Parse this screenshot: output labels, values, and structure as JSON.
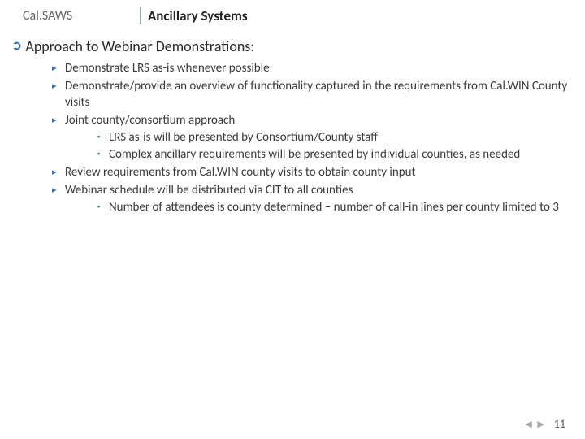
{
  "header": {
    "logo": "Cal.SAWS",
    "title": "Ancillary Systems"
  },
  "section": {
    "heading": "Approach to Webinar Demonstrations:"
  },
  "bullets": [
    {
      "text": "Demonstrate LRS as-is whenever possible"
    },
    {
      "text": "Demonstrate/provide an overview of functionality captured in the requirements from Cal.WIN County visits"
    },
    {
      "text": "Joint county/consortium approach",
      "sub": [
        "LRS as-is will be presented by Consortium/County staff",
        "Complex ancillary requirements will be presented by individual counties, as needed"
      ]
    },
    {
      "text": "Review requirements from Cal.WIN county visits to obtain county input"
    },
    {
      "text": "Webinar schedule will be distributed via CIT to all counties",
      "sub": [
        "Number of attendees is county determined – number of call-in lines per county limited to 3"
      ]
    }
  ],
  "footer": {
    "nav": "◀ ▶",
    "page": "11"
  },
  "colors": {
    "accent": "#3b6ea5",
    "text": "#3a3a3a",
    "muted": "#646464"
  }
}
